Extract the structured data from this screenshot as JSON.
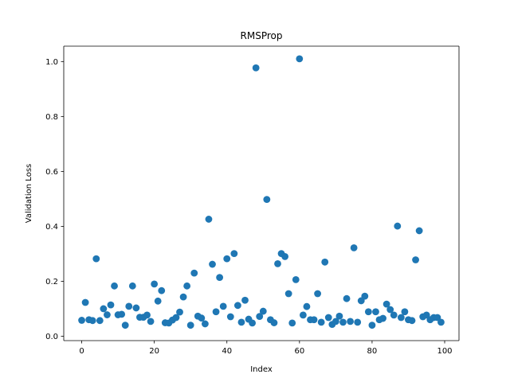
{
  "chart_data": {
    "type": "scatter",
    "title": "RMSProp",
    "xlabel": "Index",
    "ylabel": "Validation Loss",
    "xlim": [
      -4.95,
      103.95
    ],
    "ylim": [
      -0.016,
      1.056
    ],
    "xticks": [
      0,
      20,
      40,
      60,
      80,
      100
    ],
    "yticks": [
      0.0,
      0.2,
      0.4,
      0.6,
      0.8,
      1.0
    ],
    "xtick_labels": [
      "0",
      "20",
      "40",
      "60",
      "80",
      "100"
    ],
    "ytick_labels": [
      "0.0",
      "0.2",
      "0.4",
      "0.6",
      "0.8",
      "1.0"
    ],
    "grid": false,
    "marker_color": "#1f77b4",
    "series": [
      {
        "x": [
          0,
          1,
          2,
          3,
          4,
          5,
          6,
          7,
          8,
          9,
          10,
          11,
          12,
          13,
          14,
          15,
          16,
          17,
          18,
          19,
          20,
          21,
          22,
          23,
          24,
          25,
          26,
          27,
          28,
          29,
          30,
          31,
          32,
          33,
          34,
          35,
          36,
          37,
          38,
          39,
          40,
          41,
          42,
          43,
          44,
          45,
          46,
          47,
          48,
          49,
          50,
          51,
          52,
          53,
          54,
          55,
          56,
          57,
          58,
          59,
          60,
          61,
          62,
          63,
          64,
          65,
          66,
          67,
          68,
          69,
          70,
          71,
          72,
          73,
          74,
          75,
          76,
          77,
          78,
          79,
          80,
          81,
          82,
          83,
          84,
          85,
          86,
          87,
          88,
          89,
          90,
          91,
          92,
          93,
          94,
          95,
          96,
          97,
          98,
          99
        ],
        "y": [
          0.058,
          0.123,
          0.06,
          0.057,
          0.282,
          0.057,
          0.1,
          0.078,
          0.114,
          0.183,
          0.078,
          0.08,
          0.04,
          0.109,
          0.183,
          0.103,
          0.069,
          0.069,
          0.077,
          0.054,
          0.19,
          0.128,
          0.166,
          0.049,
          0.048,
          0.059,
          0.068,
          0.088,
          0.143,
          0.183,
          0.04,
          0.23,
          0.073,
          0.066,
          0.045,
          0.426,
          0.262,
          0.089,
          0.214,
          0.109,
          0.282,
          0.071,
          0.301,
          0.112,
          0.051,
          0.131,
          0.062,
          0.048,
          0.977,
          0.072,
          0.091,
          0.498,
          0.06,
          0.049,
          0.264,
          0.301,
          0.29,
          0.155,
          0.048,
          0.206,
          1.01,
          0.077,
          0.108,
          0.06,
          0.06,
          0.155,
          0.051,
          0.27,
          0.068,
          0.043,
          0.054,
          0.073,
          0.051,
          0.137,
          0.054,
          0.322,
          0.051,
          0.129,
          0.146,
          0.089,
          0.04,
          0.089,
          0.06,
          0.065,
          0.117,
          0.097,
          0.077,
          0.401,
          0.068,
          0.089,
          0.06,
          0.057,
          0.278,
          0.384,
          0.071,
          0.077,
          0.06,
          0.068,
          0.068,
          0.051
        ]
      }
    ]
  }
}
